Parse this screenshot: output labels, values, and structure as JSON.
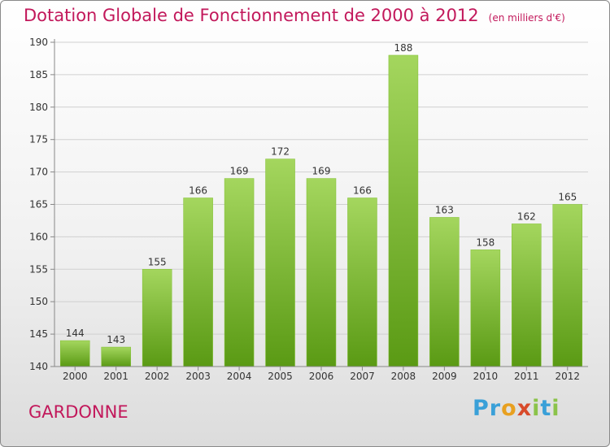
{
  "header": {
    "title": "Dotation Globale de Fonctionnement de 2000 à 2012",
    "unit_note": "(en milliers d'€)"
  },
  "commune": "GARDONNE",
  "brand": {
    "text": "Proxiti",
    "colors": [
      "#3aa0d8",
      "#3aa0d8",
      "#e8a020",
      "#d84a2a",
      "#8bc34a",
      "#3aa0d8",
      "#8bc34a"
    ]
  },
  "colors": {
    "bar_top": "#a4d65e",
    "bar_bottom": "#5a9a14",
    "text_accent": "#c2185b"
  },
  "chart_data": {
    "type": "bar",
    "title": "Dotation Globale de Fonctionnement de 2000 à 2012",
    "subtitle": "(en milliers d'€)",
    "categories": [
      "2000",
      "2001",
      "2002",
      "2003",
      "2004",
      "2005",
      "2006",
      "2007",
      "2008",
      "2009",
      "2010",
      "2011",
      "2012"
    ],
    "values": [
      144,
      143,
      155,
      166,
      169,
      172,
      169,
      166,
      188,
      163,
      158,
      162,
      165
    ],
    "ylim": [
      140,
      190
    ],
    "yticks": [
      140,
      145,
      150,
      155,
      160,
      165,
      170,
      175,
      180,
      185,
      190
    ],
    "grid": true,
    "legend": "none"
  }
}
